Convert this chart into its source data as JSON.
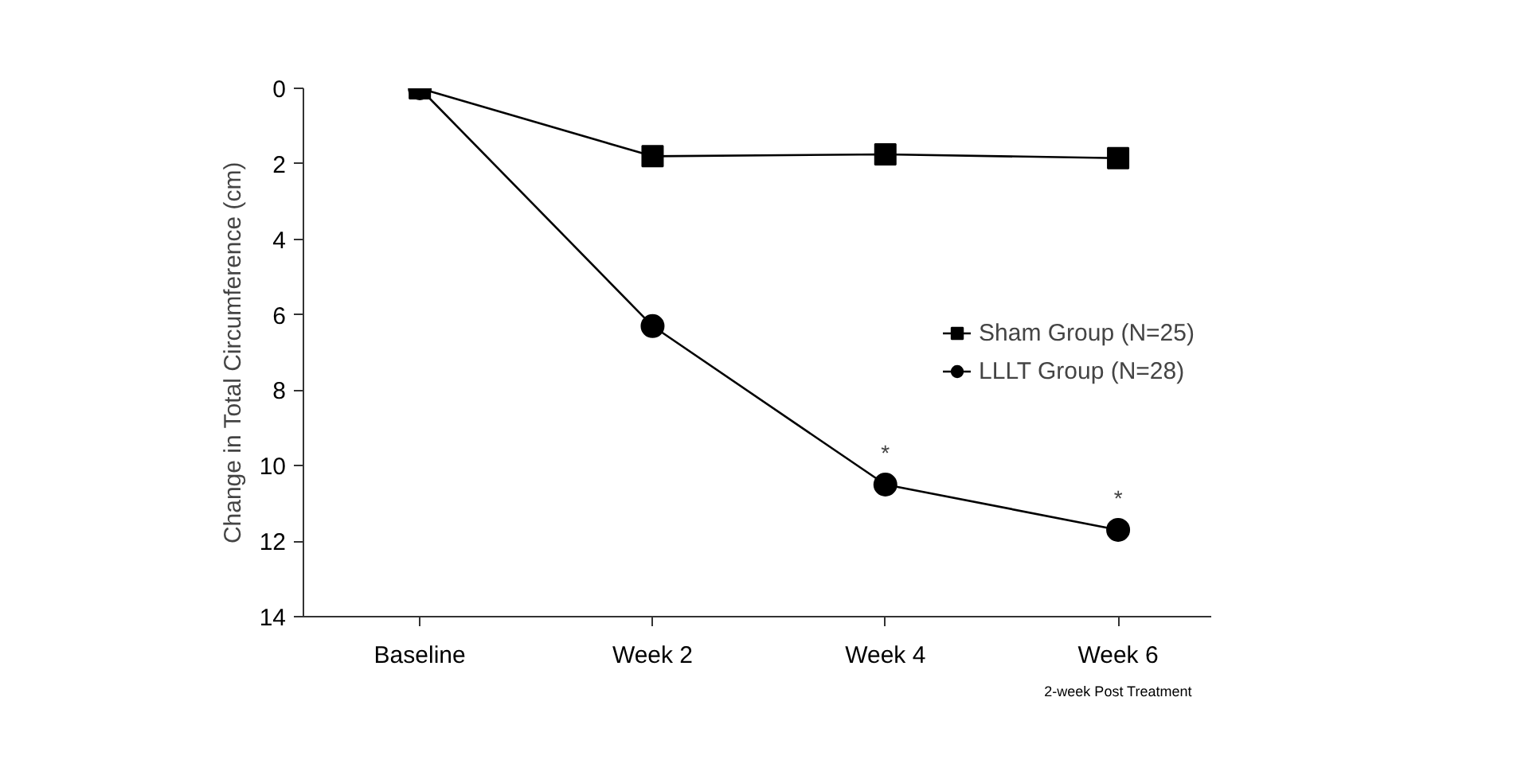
{
  "chart_data": {
    "type": "line",
    "ylabel": "Change in Total Circumference (cm)",
    "categories": [
      "Baseline",
      "Week 2",
      "Week 4",
      "Week 6"
    ],
    "series": [
      {
        "name": "Sham Group (N=25)",
        "color": "#000000",
        "marker": "square",
        "values": [
          0,
          1.8,
          1.75,
          1.85
        ]
      },
      {
        "name": "LLLT Group (N=28)",
        "color": "#000000",
        "marker": "circle",
        "values": [
          0,
          6.3,
          10.5,
          11.7
        ]
      }
    ],
    "ylim": [
      14,
      0
    ],
    "yticks": [
      0,
      2,
      4,
      6,
      8,
      10,
      12,
      14
    ],
    "annotations": [
      {
        "text": "*",
        "x": "Week 4",
        "y": 10.5
      },
      {
        "text": "*",
        "x": "Week 6",
        "y": 11.7
      },
      "2-week Post Treatment"
    ],
    "grid": false,
    "legend": "right",
    "line_style": "solid"
  }
}
